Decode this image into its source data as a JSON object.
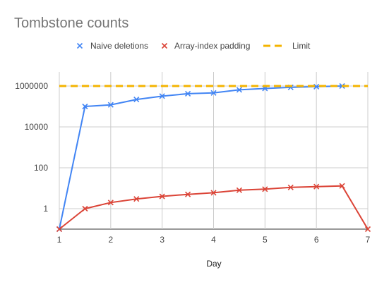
{
  "chart_data": {
    "type": "line",
    "title": "Tombstone counts",
    "xlabel": "Day",
    "ylabel": "",
    "x_ticks": [
      1,
      2,
      3,
      4,
      5,
      6,
      7
    ],
    "xlim": [
      1,
      7
    ],
    "yscale": "log",
    "ylim": [
      0.1,
      1000000
    ],
    "y_ticks": [
      1,
      100,
      10000,
      1000000
    ],
    "y_tick_labels": [
      "1",
      "100",
      "10000",
      "1000000"
    ],
    "grid": true,
    "legend_position": "top",
    "series": [
      {
        "name": "Naive deletions",
        "color": "#4285f4",
        "marker": "x",
        "x": [
          1,
          1.5,
          2,
          2.5,
          3,
          3.5,
          4,
          4.5,
          5,
          5.5,
          6,
          6.5
        ],
        "y": [
          0.1,
          100000,
          120000,
          220000,
          320000,
          420000,
          460000,
          650000,
          760000,
          860000,
          930000,
          1000000
        ]
      },
      {
        "name": "Array-index padding",
        "color": "#db4437",
        "marker": "x",
        "x": [
          1,
          1.5,
          2,
          2.5,
          3,
          3.5,
          4,
          4.5,
          5,
          5.5,
          6,
          6.5,
          7
        ],
        "y": [
          0.1,
          1,
          2,
          3,
          4,
          5,
          6,
          8,
          9,
          11,
          12,
          13,
          0.1
        ]
      },
      {
        "name": "Limit",
        "color": "#f4b400",
        "style": "dashed",
        "x": [
          1,
          7
        ],
        "y": [
          1000000,
          1000000
        ]
      }
    ]
  }
}
